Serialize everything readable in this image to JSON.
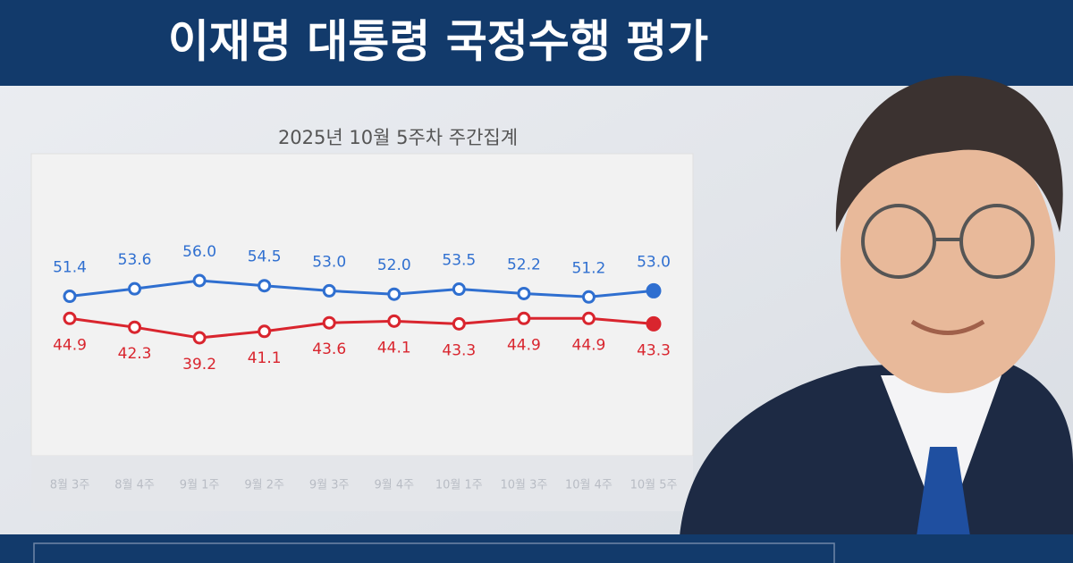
{
  "chart_data": {
    "type": "line",
    "title": "이재명 대통령 국정수행 평가",
    "subtitle": "2025년 10월 5주차 주간집계",
    "categories": [
      "8월 3주",
      "8월 4주",
      "9월 1주",
      "9월 2주",
      "9월 3주",
      "9월 4주",
      "10월 1주",
      "10월 3주",
      "10월 4주",
      "10월 5주"
    ],
    "series": [
      {
        "color": "#2f6fd0",
        "values": [
          51.4,
          53.6,
          56.0,
          54.5,
          53.0,
          52.0,
          53.5,
          52.2,
          51.2,
          53.0
        ],
        "value_labels": [
          "51.4",
          "53.6",
          "56.0",
          "54.5",
          "53.0",
          "52.0",
          "53.5",
          "52.2",
          "51.2",
          "53.0"
        ]
      },
      {
        "color": "#d9252e",
        "values": [
          44.9,
          42.3,
          39.2,
          41.1,
          43.6,
          44.1,
          43.3,
          44.9,
          44.9,
          43.3
        ],
        "value_labels": [
          "44.9",
          "42.3",
          "39.2",
          "41.1",
          "43.6",
          "44.1",
          "43.3",
          "44.9",
          "44.9",
          "43.3"
        ]
      }
    ]
  }
}
